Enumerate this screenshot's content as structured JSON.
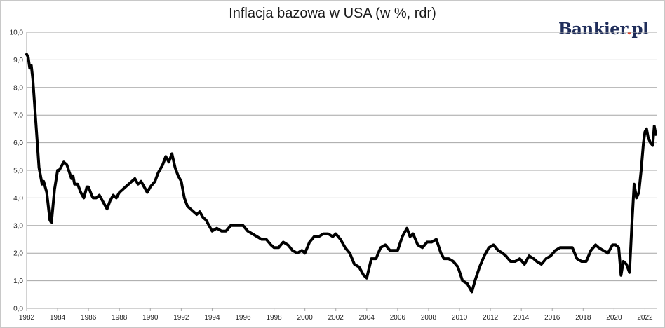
{
  "chart_data": {
    "type": "line",
    "title": "Inflacja bazowa w USA (w %, rdr)",
    "xlabel": "",
    "ylabel": "",
    "xlim": [
      1982,
      2022.75
    ],
    "ylim": [
      0,
      10
    ],
    "y_ticks": [
      "0,0",
      "1,0",
      "2,0",
      "3,0",
      "4,0",
      "5,0",
      "6,0",
      "7,0",
      "8,0",
      "9,0",
      "10,0"
    ],
    "x_ticks": [
      "1982",
      "1984",
      "1986",
      "1988",
      "1990",
      "1992",
      "1994",
      "1996",
      "1998",
      "2000",
      "2002",
      "2004",
      "2006",
      "2008",
      "2010",
      "2012",
      "2014",
      "2016",
      "2018",
      "2020",
      "2022"
    ],
    "grid": "horizontal",
    "line_color": "#000000",
    "series": [
      {
        "x": [
          1982.0,
          1982.1,
          1982.2,
          1982.3,
          1982.4,
          1982.55,
          1982.7,
          1982.8,
          1983.0,
          1983.1,
          1983.3,
          1983.5,
          1983.6,
          1983.8,
          1984.0,
          1984.1,
          1984.4,
          1984.6,
          1984.9,
          1985.0,
          1985.1,
          1985.3,
          1985.5,
          1985.7,
          1985.9,
          1986.0,
          1986.2,
          1986.3,
          1986.5,
          1986.7,
          1986.9,
          1987.0,
          1987.2,
          1987.4,
          1987.6,
          1987.8,
          1988.0,
          1988.2,
          1988.4,
          1988.6,
          1988.8,
          1989.0,
          1989.2,
          1989.4,
          1989.6,
          1989.8,
          1990.0,
          1990.3,
          1990.5,
          1990.8,
          1991.0,
          1991.2,
          1991.4,
          1991.6,
          1991.8,
          1992.0,
          1992.2,
          1992.4,
          1992.6,
          1992.8,
          1993.0,
          1993.2,
          1993.4,
          1993.6,
          1993.8,
          1994.0,
          1994.3,
          1994.6,
          1994.9,
          1995.2,
          1995.5,
          1995.8,
          1996.0,
          1996.3,
          1996.6,
          1996.9,
          1997.2,
          1997.5,
          1997.8,
          1998.0,
          1998.3,
          1998.6,
          1998.9,
          1999.2,
          1999.5,
          1999.8,
          2000.0,
          2000.3,
          2000.6,
          2000.9,
          2001.2,
          2001.5,
          2001.8,
          2002.0,
          2002.3,
          2002.6,
          2002.9,
          2003.2,
          2003.5,
          2003.8,
          2004.0,
          2004.3,
          2004.6,
          2004.9,
          2005.2,
          2005.5,
          2005.8,
          2006.0,
          2006.3,
          2006.6,
          2006.8,
          2007.0,
          2007.3,
          2007.6,
          2007.9,
          2008.2,
          2008.5,
          2008.8,
          2009.0,
          2009.3,
          2009.6,
          2009.9,
          2010.2,
          2010.5,
          2010.8,
          2011.0,
          2011.3,
          2011.6,
          2011.9,
          2012.2,
          2012.5,
          2012.8,
          2013.0,
          2013.3,
          2013.6,
          2013.9,
          2014.2,
          2014.5,
          2014.8,
          2015.0,
          2015.3,
          2015.6,
          2015.9,
          2016.2,
          2016.5,
          2016.8,
          2017.0,
          2017.3,
          2017.6,
          2017.9,
          2018.2,
          2018.5,
          2018.8,
          2019.0,
          2019.3,
          2019.6,
          2019.9,
          2020.1,
          2020.3,
          2020.45,
          2020.6,
          2020.8,
          2021.0,
          2021.15,
          2021.3,
          2021.45,
          2021.6,
          2021.75,
          2021.9,
          2022.0,
          2022.1,
          2022.2,
          2022.35,
          2022.5,
          2022.6,
          2022.7
        ],
        "values": [
          9.2,
          9.1,
          8.7,
          8.8,
          8.3,
          7.1,
          5.9,
          5.1,
          4.5,
          4.6,
          4.2,
          3.2,
          3.1,
          4.3,
          5.0,
          5.0,
          5.3,
          5.2,
          4.7,
          4.8,
          4.5,
          4.5,
          4.2,
          4.0,
          4.4,
          4.4,
          4.1,
          4.0,
          4.0,
          4.1,
          3.9,
          3.8,
          3.6,
          3.9,
          4.1,
          4.0,
          4.2,
          4.3,
          4.4,
          4.5,
          4.6,
          4.7,
          4.5,
          4.6,
          4.4,
          4.2,
          4.4,
          4.6,
          4.9,
          5.2,
          5.5,
          5.3,
          5.6,
          5.1,
          4.8,
          4.6,
          4.0,
          3.7,
          3.6,
          3.5,
          3.4,
          3.5,
          3.3,
          3.2,
          3.0,
          2.8,
          2.9,
          2.8,
          2.8,
          3.0,
          3.0,
          3.0,
          3.0,
          2.8,
          2.7,
          2.6,
          2.5,
          2.5,
          2.3,
          2.2,
          2.2,
          2.4,
          2.3,
          2.1,
          2.0,
          2.1,
          2.0,
          2.4,
          2.6,
          2.6,
          2.7,
          2.7,
          2.6,
          2.7,
          2.5,
          2.2,
          2.0,
          1.6,
          1.5,
          1.2,
          1.1,
          1.8,
          1.8,
          2.2,
          2.3,
          2.1,
          2.1,
          2.1,
          2.6,
          2.9,
          2.6,
          2.7,
          2.3,
          2.2,
          2.4,
          2.4,
          2.5,
          2.0,
          1.8,
          1.8,
          1.7,
          1.5,
          1.0,
          0.9,
          0.6,
          1.0,
          1.5,
          1.9,
          2.2,
          2.3,
          2.1,
          2.0,
          1.9,
          1.7,
          1.7,
          1.8,
          1.6,
          1.9,
          1.8,
          1.7,
          1.6,
          1.8,
          1.9,
          2.1,
          2.2,
          2.2,
          2.2,
          2.2,
          1.8,
          1.7,
          1.7,
          2.1,
          2.3,
          2.2,
          2.1,
          2.0,
          2.3,
          2.3,
          2.2,
          1.2,
          1.7,
          1.6,
          1.3,
          3.0,
          4.5,
          4.0,
          4.2,
          5.0,
          6.0,
          6.4,
          6.5,
          6.2,
          6.0,
          5.9,
          6.6,
          6.3
        ]
      }
    ]
  },
  "logo": {
    "text": "Bankier",
    "dot": ".",
    "suffix": "pl"
  }
}
